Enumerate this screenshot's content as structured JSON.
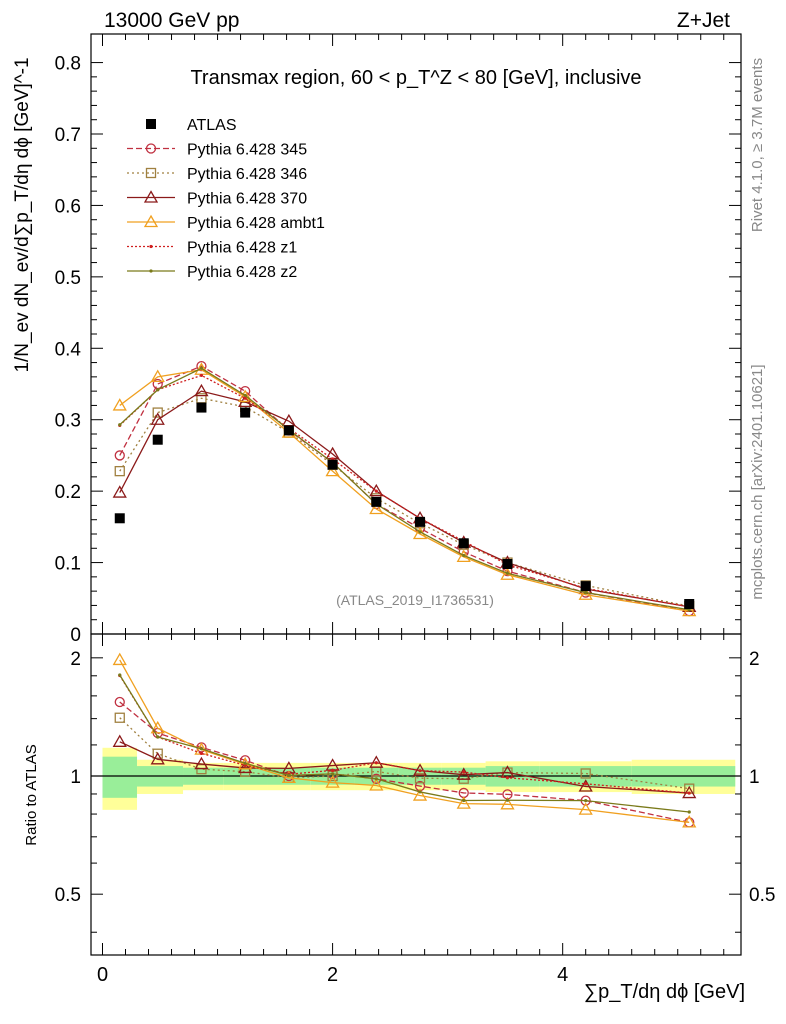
{
  "header": {
    "left": "13000 GeV pp",
    "right": "Z+Jet"
  },
  "side": {
    "rivet": "Rivet 4.1.0, ≥ 3.7M events",
    "mcplots": "mcplots.cern.ch [arXiv:2401.10621]"
  },
  "chart_data": {
    "type": "line",
    "title": "Transmax region, 60 < p_T^Z < 80 [GeV], inclusive",
    "watermark": "(ATLAS_2019_I1736531)",
    "ylabel": "1/N_ev dN_ev/d∑p_T/dη dϕ [GeV]^-1",
    "xlabel": "∑p_T/dη dϕ [GeV]",
    "ratio_ylabel": "Ratio to ATLAS",
    "xlim": [
      -0.1,
      5.55
    ],
    "ylim": [
      0,
      0.84
    ],
    "ratio_ylim": [
      0.35,
      2.3
    ],
    "x_ticks": [
      "0",
      "2",
      "4"
    ],
    "y_ticks": [
      "0",
      "0.1",
      "0.2",
      "0.3",
      "0.4",
      "0.5",
      "0.6",
      "0.7",
      "0.8"
    ],
    "ratio_ticks": [
      "0.5",
      "1",
      "2"
    ],
    "x": [
      0.15,
      0.48,
      0.86,
      1.24,
      1.62,
      2.0,
      2.38,
      2.76,
      3.14,
      3.52,
      4.2,
      5.1
    ],
    "data": {
      "name": "ATLAS",
      "values": [
        0.162,
        0.272,
        0.317,
        0.31,
        0.285,
        0.237,
        0.185,
        0.157,
        0.127,
        0.098,
        0.067,
        0.042
      ]
    },
    "band_edges": [
      0.0,
      0.3,
      0.7,
      1.05,
      1.43,
      1.81,
      2.19,
      2.57,
      2.95,
      3.33,
      3.8,
      4.6,
      5.5
    ],
    "band_inner": [
      0.12,
      0.06,
      0.05,
      0.05,
      0.05,
      0.05,
      0.05,
      0.05,
      0.05,
      0.06,
      0.06,
      0.06
    ],
    "band_outer": [
      0.18,
      0.1,
      0.08,
      0.08,
      0.08,
      0.08,
      0.08,
      0.08,
      0.08,
      0.09,
      0.09,
      0.1
    ],
    "series": [
      {
        "name": "Pythia 6.428 345",
        "color": "#c03040",
        "dash": "6,3",
        "marker": "circle",
        "values": [
          0.25,
          0.35,
          0.375,
          0.34,
          0.285,
          0.24,
          0.182,
          0.148,
          0.115,
          0.088,
          0.058,
          0.032
        ]
      },
      {
        "name": "Pythia 6.428 346",
        "color": "#a08040",
        "dash": "2,3",
        "marker": "square",
        "values": [
          0.228,
          0.31,
          0.33,
          0.318,
          0.282,
          0.237,
          0.19,
          0.155,
          0.125,
          0.1,
          0.068,
          0.039
        ]
      },
      {
        "name": "Pythia 6.428 370",
        "color": "#8b1a1a",
        "dash": "",
        "marker": "triangle",
        "values": [
          0.198,
          0.3,
          0.34,
          0.325,
          0.298,
          0.252,
          0.2,
          0.162,
          0.128,
          0.1,
          0.063,
          0.038
        ]
      },
      {
        "name": "Pythia 6.428 ambt1",
        "color": "#f0a020",
        "dash": "",
        "marker": "triangle",
        "values": [
          0.32,
          0.36,
          0.37,
          0.332,
          0.282,
          0.228,
          0.175,
          0.14,
          0.108,
          0.083,
          0.055,
          0.032
        ]
      },
      {
        "name": "Pythia 6.428 z1",
        "color": "#d02020",
        "dash": "2,2",
        "marker": "dot",
        "values": [
          0.292,
          0.342,
          0.362,
          0.33,
          0.288,
          0.245,
          0.2,
          0.162,
          0.13,
          0.097,
          0.064,
          0.038
        ]
      },
      {
        "name": "Pythia 6.428 z2",
        "color": "#7a7a1a",
        "dash": "",
        "marker": "dot",
        "values": [
          0.293,
          0.342,
          0.372,
          0.334,
          0.286,
          0.24,
          0.182,
          0.143,
          0.11,
          0.085,
          0.058,
          0.034
        ]
      }
    ]
  }
}
